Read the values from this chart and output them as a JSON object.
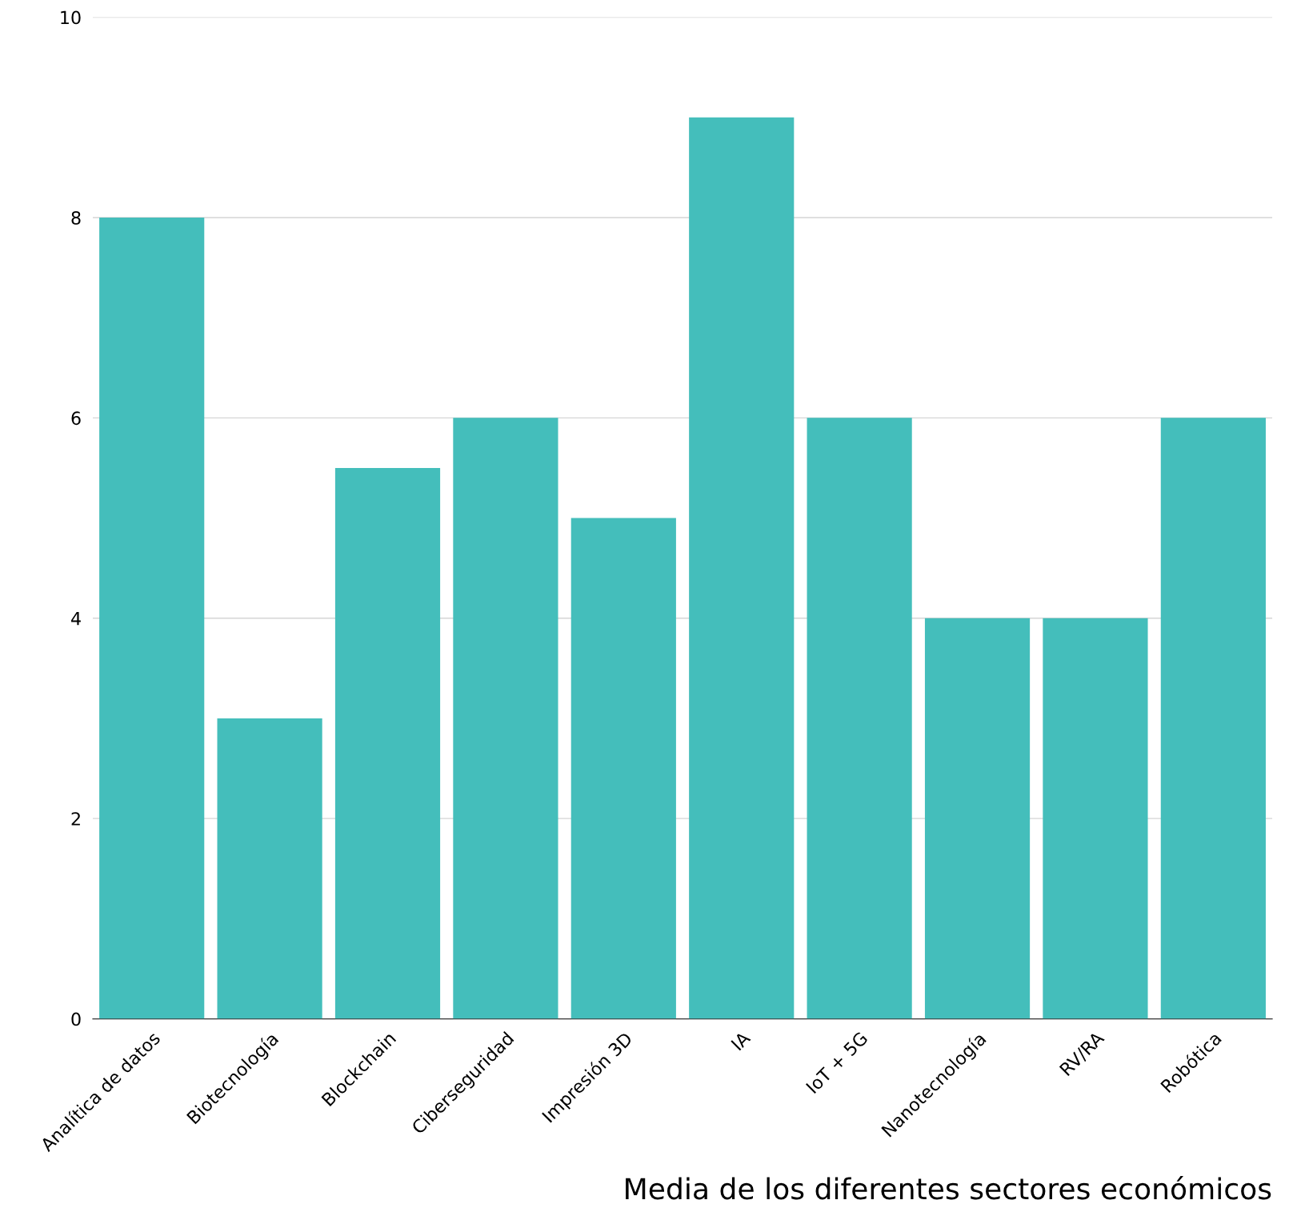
{
  "chart_data": {
    "type": "bar",
    "xlabel": "Media de los diferentes sectores económicos",
    "categories": [
      "Analítica de datos",
      "Biotecnología",
      "Blockchain",
      "Ciberseguridad",
      "Impresión 3D",
      "IA",
      "IoT + 5G",
      "Nanotecnología",
      "RV/RA",
      "Robótica"
    ],
    "values": [
      8,
      3,
      5.5,
      6,
      5,
      9,
      6,
      4,
      4,
      6
    ],
    "color": "#44bebb",
    "ylim": [
      0,
      10
    ],
    "yticks": [
      0,
      2,
      4,
      6,
      8,
      10
    ],
    "grid": "y"
  }
}
